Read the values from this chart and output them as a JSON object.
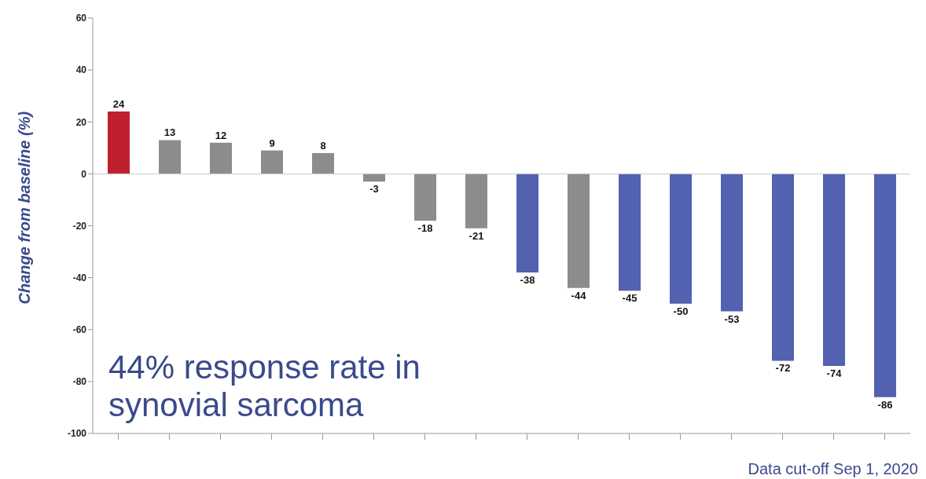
{
  "chart_data": {
    "type": "bar",
    "ylabel": "Change from baseline (%)",
    "categories": [
      null,
      null,
      null,
      null,
      null,
      null,
      null,
      null,
      null,
      null,
      null,
      null,
      null,
      null,
      null,
      null
    ],
    "values": [
      24,
      13,
      12,
      9,
      8,
      -3,
      -18,
      -21,
      -38,
      -44,
      -45,
      -50,
      -53,
      -72,
      -74,
      -86
    ],
    "colors": [
      "#c0202e",
      "#8c8c8c",
      "#8c8c8c",
      "#8c8c8c",
      "#8c8c8c",
      "#8c8c8c",
      "#8c8c8c",
      "#8c8c8c",
      "#5262b0",
      "#8c8c8c",
      "#5262b0",
      "#5262b0",
      "#5262b0",
      "#5262b0",
      "#5262b0",
      "#5262b0"
    ],
    "ylim": [
      -100,
      60
    ],
    "yticks": [
      -100,
      -80,
      -60,
      -40,
      -20,
      0,
      20,
      40,
      60
    ],
    "grid": false,
    "data_labels": true,
    "ref_lines": [
      {
        "axis": "y",
        "value": 0,
        "color": "#c8c8c8"
      }
    ],
    "annotations": [
      "44% response rate in synovial sarcoma",
      "Data cut-off Sep 1, 2020"
    ]
  }
}
